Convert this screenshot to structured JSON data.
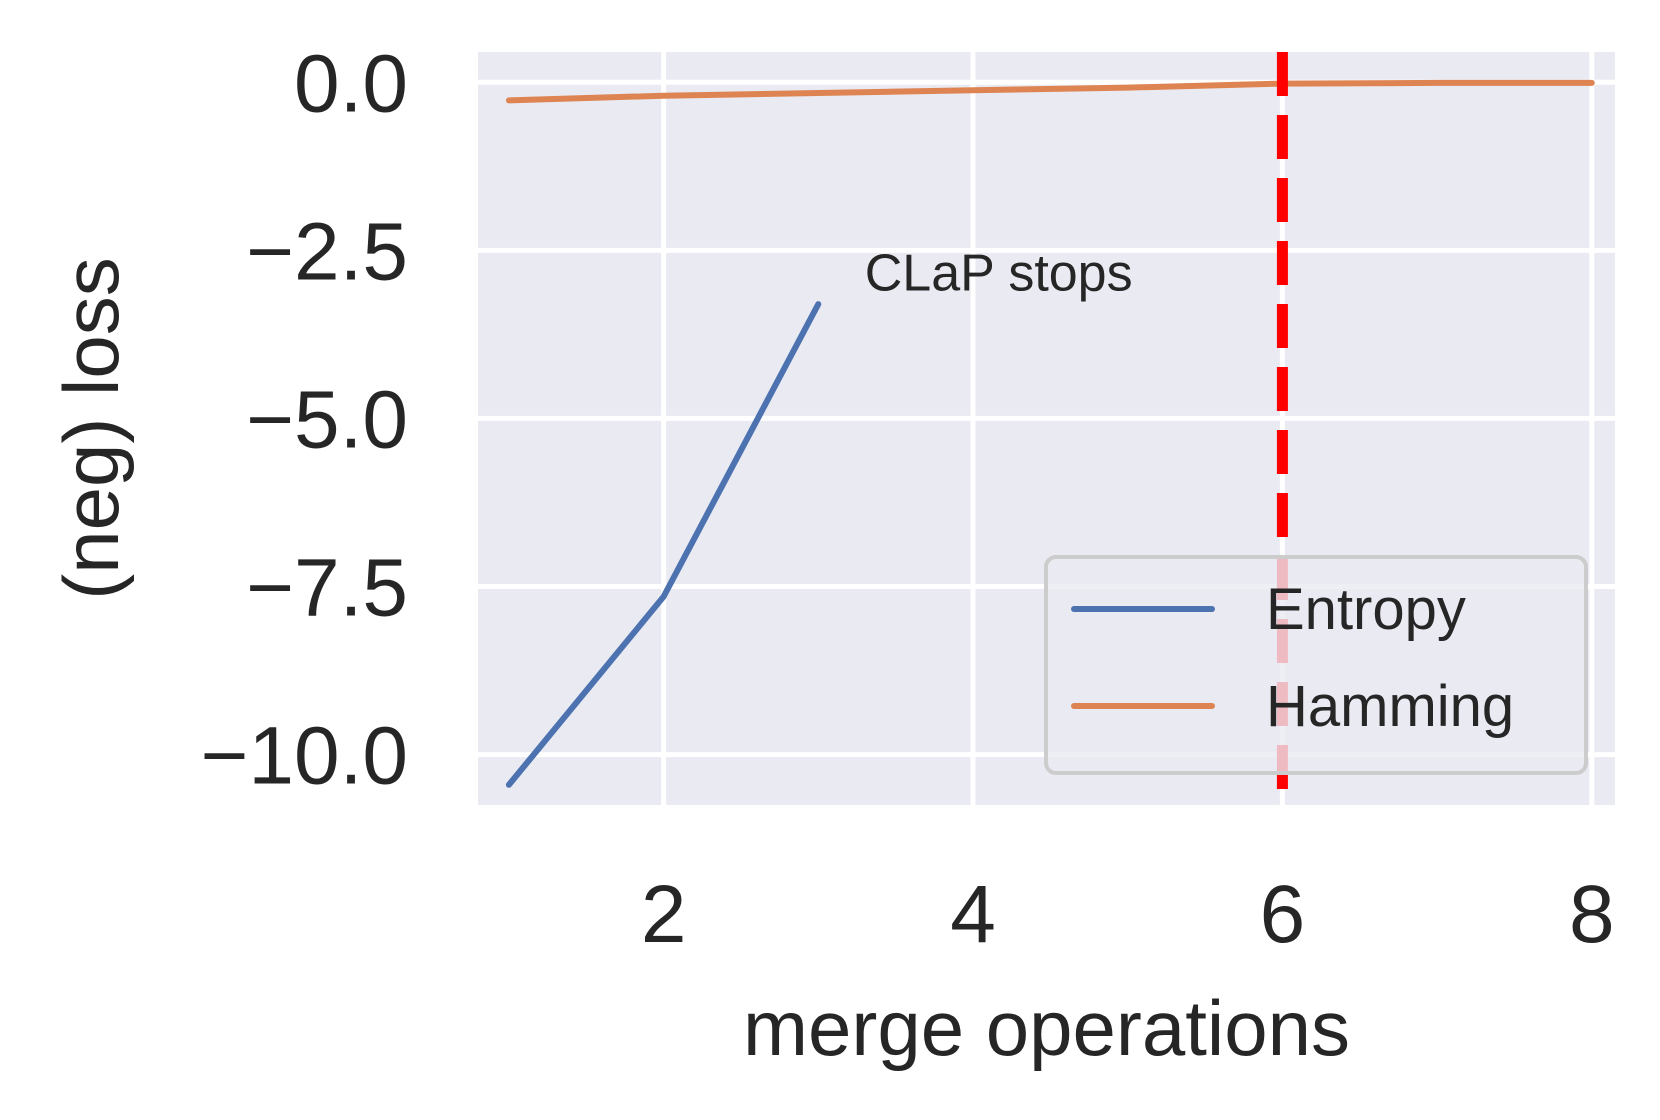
{
  "chart_data": {
    "type": "line",
    "title": "",
    "xlabel": "merge operations",
    "ylabel": "(neg) loss",
    "xlim": [
      0.8,
      8.15
    ],
    "ylim": [
      -10.75,
      0.45
    ],
    "xticks": [
      2,
      4,
      6,
      8
    ],
    "xtick_labels": [
      "2",
      "4",
      "6",
      "8"
    ],
    "yticks": [
      0.0,
      -2.5,
      -5.0,
      -7.5,
      -10.0
    ],
    "ytick_labels": [
      "0.0",
      "−2.5",
      "−5.0",
      "−7.5",
      "−10.0"
    ],
    "grid": true,
    "legend_position": "lower right",
    "series": [
      {
        "name": "Entropy",
        "color": "#4c72b0",
        "x": [
          1,
          2,
          3
        ],
        "y": [
          -10.45,
          -7.65,
          -3.3
        ]
      },
      {
        "name": "Hamming",
        "color": "#dd8452",
        "x": [
          1,
          2,
          3,
          4,
          5,
          6,
          7,
          8
        ],
        "y": [
          -0.27,
          -0.2,
          -0.16,
          -0.12,
          -0.08,
          -0.02,
          -0.01,
          -0.01
        ]
      }
    ],
    "vline": {
      "x": 6,
      "color": "#ff0000",
      "style": "dashed"
    },
    "annotation": {
      "text": "CLaP stops",
      "x": 3.3,
      "y": -3.1
    }
  }
}
